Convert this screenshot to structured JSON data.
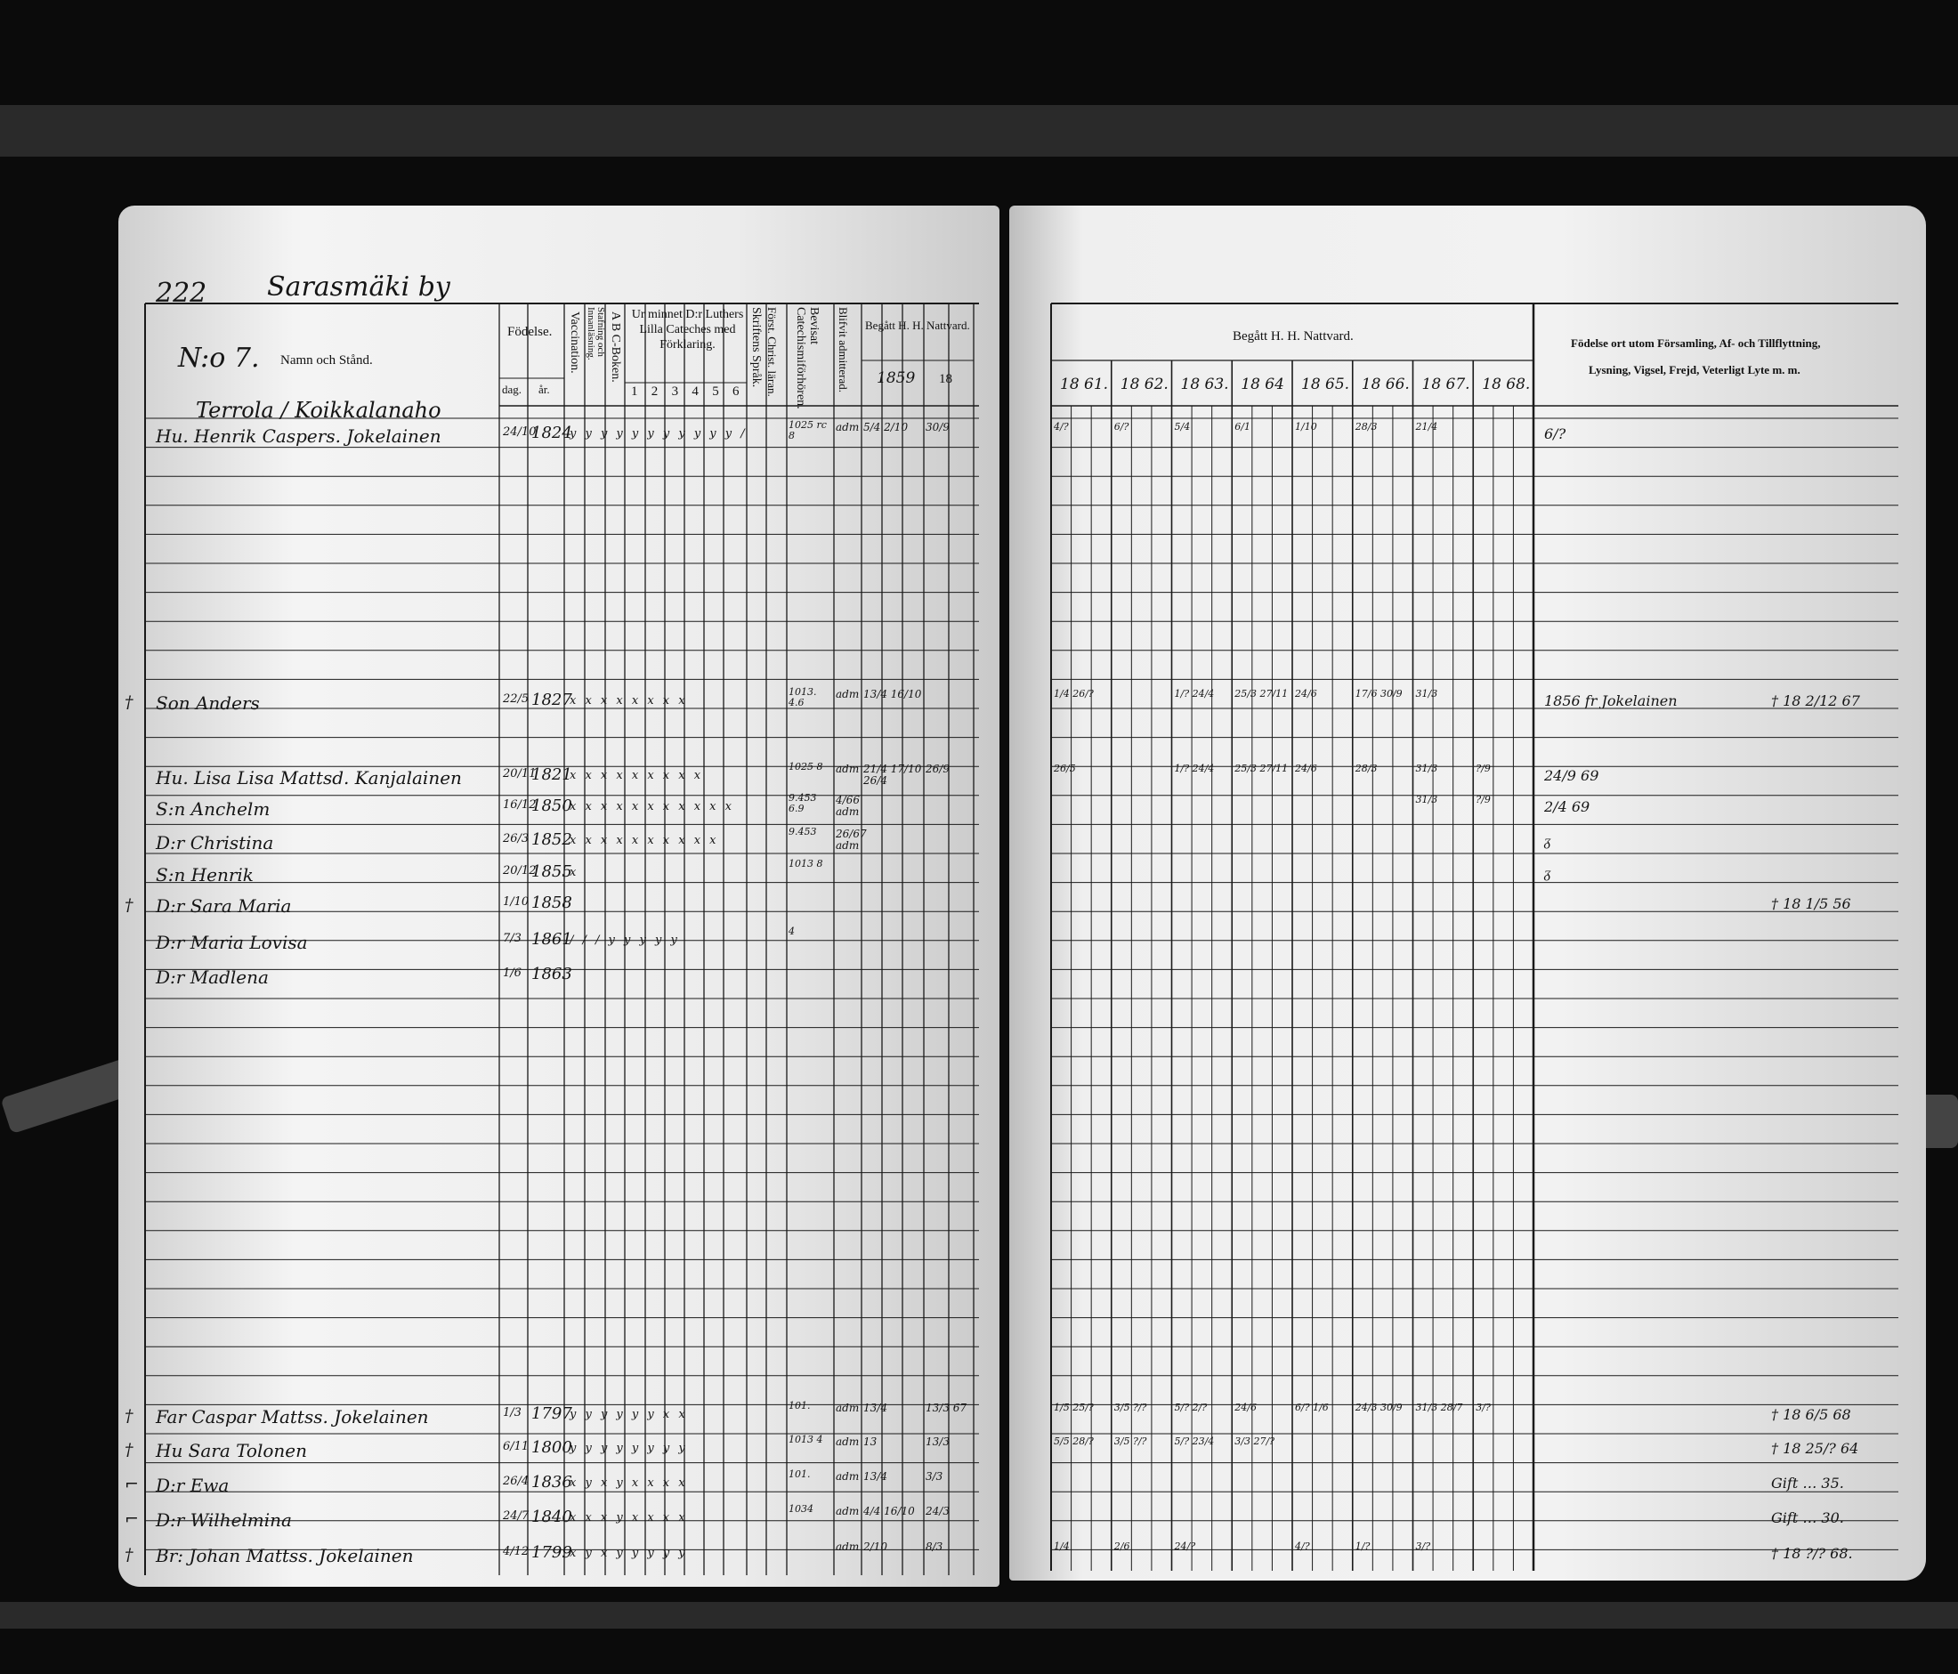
{
  "left_page": {
    "page_number": "222",
    "village": "Sarasmäki by",
    "household_no": "N:o 7.",
    "headers": {
      "name": "Namn och Stånd.",
      "birth": "Födelse.",
      "day": "dag.",
      "year": "år.",
      "vaccination": "Vaccination.",
      "reading": "Stafning och Innanläsning.",
      "abc": "A B C-Boken.",
      "catechism": "Ur minnet D:r Luthers Lilla Cateches med Förklaring.",
      "catechism_cols": [
        "1",
        "2",
        "3",
        "4",
        "5",
        "6"
      ],
      "scripture": "Skriftens Språk.",
      "christian": "Först. Christ. läran.",
      "examinations": "Bevisat Catechismiförhören.",
      "admitted": "Blifvit admitterad.",
      "communion": "Begått H. H. Nattvard.",
      "year1": "1859",
      "year2": "18"
    },
    "farm": "Terrola / Koikkalanaho",
    "persons": [
      {
        "name": "Hu. Henrik Caspers. Jokelainen",
        "day": "24/10",
        "year": "1824",
        "marks": "y y y y y y y y y y y /",
        "exam": "1025 rc 8",
        "adm": "adm",
        "c1": "5/4  2/10",
        "c2": "30/9"
      },
      {
        "name": "Son Anders",
        "day": "22/5",
        "year": "1827",
        "marks": "x x x x x x x x",
        "exam": "1013. 4.6",
        "adm": "adm",
        "c1": "13/4 16/10",
        "c2": "",
        "death_mark": "†"
      },
      {
        "name": "Hu. Lisa Lisa Mattsd. Kanjalainen",
        "day": "20/11",
        "year": "1821",
        "marks": "x x x x x x x x x",
        "exam": "1025 8",
        "adm": "adm",
        "c1": "21/4 17/10 26/4",
        "c2": "26/9"
      },
      {
        "name": "S:n Anchelm",
        "day": "16/12",
        "year": "1850",
        "marks": "x x x x x x x x x x x",
        "exam": "9.453 6.9",
        "adm": "4/66 adm",
        "c1": "",
        "c2": ""
      },
      {
        "name": "D:r Christina",
        "day": "26/3",
        "year": "1852",
        "marks": "x x x x x x x x x x",
        "exam": "9.453",
        "adm": "26/67 adm",
        "c1": "",
        "c2": ""
      },
      {
        "name": "S:n Henrik",
        "day": "20/12",
        "year": "1855",
        "marks": "x",
        "exam": "1013 8",
        "adm": "",
        "c1": "",
        "c2": ""
      },
      {
        "name": "D:r Sara Maria",
        "day": "1/10",
        "year": "1858",
        "marks": "",
        "exam": "",
        "adm": "",
        "c1": "",
        "c2": "",
        "death_mark": "†"
      },
      {
        "name": "D:r Maria Lovisa",
        "day": "7/3",
        "year": "1861",
        "marks": "/ / / y y y y y",
        "exam": "4",
        "adm": "",
        "c1": "",
        "c2": ""
      },
      {
        "name": "D:r Madlena",
        "day": "1/6",
        "year": "1863",
        "marks": "",
        "exam": "",
        "adm": "",
        "c1": "",
        "c2": ""
      },
      {
        "name": "Far Caspar Mattss. Jokelainen",
        "day": "1/3",
        "year": "1797",
        "marks": "y y y y y y x x",
        "exam": "101.",
        "adm": "adm",
        "c1": "13/4",
        "c2": "13/3 67",
        "death_mark": "†"
      },
      {
        "name": "Hu Sara Tolonen",
        "day": "6/11",
        "year": "1800",
        "marks": "y y y y y y y y",
        "exam": "1013 4",
        "adm": "adm",
        "c1": "13",
        "c2": "13/3",
        "death_mark": "†"
      },
      {
        "name": "D:r Ewa",
        "day": "26/4",
        "year": "1836",
        "marks": "x y x y x x x x",
        "exam": "101.",
        "adm": "adm",
        "c1": "13/4",
        "c2": "3/3",
        "death_mark": "⌐"
      },
      {
        "name": "D:r Wilhelmina",
        "day": "24/7",
        "year": "1840",
        "marks": "x x x y x x x x",
        "exam": "1034",
        "adm": "adm",
        "c1": "4/4 16/10",
        "c2": "24/3",
        "death_mark": "⌐"
      },
      {
        "name": "Br: Johan Mattss. Jokelainen",
        "day": "4/12",
        "year": "1799",
        "marks": "x y x y y y y y",
        "exam": "",
        "adm": "adm",
        "c1": "2/10",
        "c2": "8/3",
        "death_mark": "†"
      }
    ]
  },
  "right_page": {
    "headers": {
      "communion": "Begått H. H. Nattvard.",
      "years": [
        "18 61.",
        "18 62.",
        "18 63.",
        "18 64",
        "18 65.",
        "18 66.",
        "18 67.",
        "18 68."
      ],
      "remarks_line1": "Födelse ort utom Församling, Af- och Tillflyttning,",
      "remarks_line2": "Lysning, Vigsel, Frejd, Veterligt Lyte m. m."
    },
    "rows": [
      {
        "cells": [
          "4/?",
          "6/?",
          "5/4",
          "6/1",
          "1/10",
          "28/3",
          "21/4",
          ""
        ],
        "remark": "6/?"
      },
      {
        "cells": [
          "1/4 26/?",
          "",
          "1/? 24/4",
          "25/3 27/11",
          "24/6",
          "17/6 30/9",
          "31/3",
          ""
        ],
        "remark": "1856 fr Jokelainen",
        "remark_right": "† 18 2/12 67"
      },
      {
        "cells": [
          "26/5",
          "",
          "1/? 24/4",
          "25/3 27/11",
          "24/6",
          "28/3",
          "31/3",
          "?/9"
        ],
        "remark": "24/9 69"
      },
      {
        "cells": [
          "",
          "",
          "",
          "",
          "",
          "",
          "31/3",
          "?/9"
        ],
        "remark": "2/4 69"
      },
      {
        "cells": [
          "",
          "",
          "",
          "",
          "",
          "",
          "",
          ""
        ],
        "remark": "ᵹ"
      },
      {
        "cells": [
          "",
          "",
          "",
          "",
          "",
          "",
          "",
          ""
        ],
        "remark": "ᵹ"
      },
      {
        "cells": [
          "",
          "",
          "",
          "",
          "",
          "",
          "",
          ""
        ],
        "remark": "",
        "remark_right": "† 18 1/5 56"
      },
      {
        "cells": [
          "",
          "",
          "",
          "",
          "",
          "",
          "",
          ""
        ],
        "remark": ""
      },
      {
        "cells": [
          "",
          "",
          "",
          "",
          "",
          "",
          "",
          ""
        ],
        "remark": ""
      },
      {
        "cells": [
          "1/5 25/?",
          "3/5 ?/?",
          "5/? 2/?",
          "24/6",
          "6/? 1/6",
          "24/3 30/9",
          "31/3 28/7",
          "3/?"
        ],
        "remark": "",
        "remark_right": "† 18 6/5 68"
      },
      {
        "cells": [
          "5/5 28/?",
          "3/5 ?/?",
          "5/? 23/4",
          "3/3 27/?",
          "",
          "",
          "",
          ""
        ],
        "remark": "",
        "remark_right": "† 18 25/? 64"
      },
      {
        "cells": [
          "",
          "",
          "",
          "",
          "",
          "",
          "",
          ""
        ],
        "remark": "",
        "remark_right": "Gift … 35."
      },
      {
        "cells": [
          "",
          "",
          "",
          "",
          "",
          "",
          "",
          ""
        ],
        "remark": "",
        "remark_right": "Gift … 30."
      },
      {
        "cells": [
          "1/4",
          "2/6",
          "24/?",
          "",
          "4/?",
          "1/?",
          "3/?",
          ""
        ],
        "remark": "",
        "remark_right": "† 18 ?/? 68."
      }
    ]
  }
}
